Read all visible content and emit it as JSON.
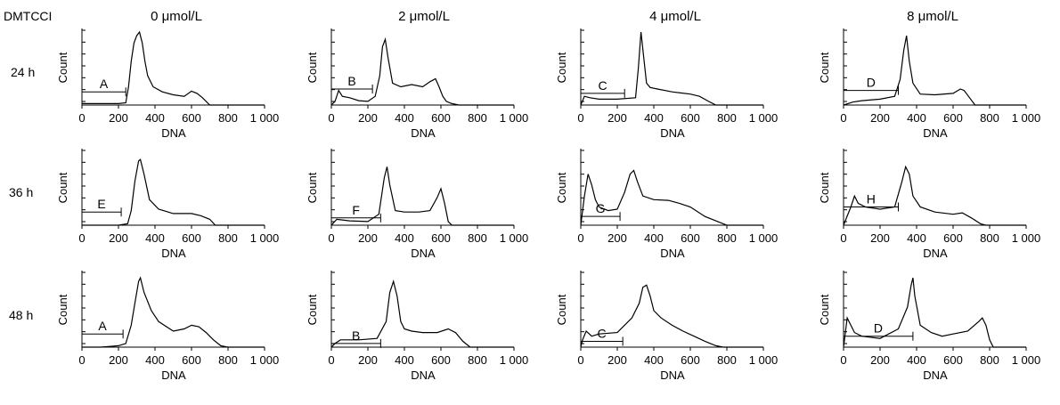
{
  "figure": {
    "corner_label": "DMTCCI",
    "columns": [
      "0 μmol/L",
      "2 μmol/L",
      "4 μmol/L",
      "8 μmol/L"
    ],
    "rows": [
      "24 h",
      "36 h",
      "48 h"
    ]
  },
  "chart_data": [
    {
      "type": "line",
      "row": 0,
      "col": 0,
      "xlabel": "DNA",
      "ylabel": "Count",
      "xlim": [
        0,
        1000
      ],
      "x_ticks": [
        "0",
        "200",
        "400",
        "600",
        "800",
        "1 000"
      ],
      "gate": {
        "label": "A",
        "x": [
          0,
          240
        ],
        "level": 0.18
      },
      "series": [
        {
          "x": [
            0,
            100,
            200,
            240,
            255,
            270,
            285,
            300,
            315,
            330,
            345,
            360,
            390,
            440,
            500,
            560,
            600,
            630,
            660,
            700,
            1000
          ],
          "values": [
            0.02,
            0.02,
            0.02,
            0.03,
            0.25,
            0.6,
            0.85,
            0.95,
            1.0,
            0.85,
            0.6,
            0.4,
            0.25,
            0.18,
            0.14,
            0.12,
            0.19,
            0.16,
            0.1,
            0.0,
            0.0
          ]
        }
      ]
    },
    {
      "type": "line",
      "row": 0,
      "col": 1,
      "xlabel": "DNA",
      "ylabel": "Count",
      "xlim": [
        0,
        1000
      ],
      "x_ticks": [
        "0",
        "200",
        "400",
        "600",
        "800",
        "1 000"
      ],
      "gate": {
        "label": "B",
        "x": [
          0,
          225
        ],
        "level": 0.22
      },
      "series": [
        {
          "x": [
            0,
            20,
            40,
            60,
            100,
            150,
            200,
            240,
            265,
            280,
            295,
            310,
            335,
            380,
            440,
            500,
            540,
            570,
            590,
            610,
            630,
            660,
            700,
            1000
          ],
          "values": [
            0.0,
            0.05,
            0.2,
            0.12,
            0.1,
            0.06,
            0.05,
            0.12,
            0.4,
            0.8,
            0.9,
            0.65,
            0.3,
            0.25,
            0.28,
            0.25,
            0.32,
            0.36,
            0.25,
            0.12,
            0.05,
            0.02,
            0.0,
            0.0
          ]
        }
      ]
    },
    {
      "type": "line",
      "row": 0,
      "col": 2,
      "xlabel": "DNA",
      "ylabel": "Count",
      "xlim": [
        0,
        1000
      ],
      "x_ticks": [
        "0",
        "200",
        "400",
        "600",
        "800",
        "1 000"
      ],
      "gate": {
        "label": "C",
        "x": [
          0,
          240
        ],
        "level": 0.16
      },
      "series": [
        {
          "x": [
            0,
            20,
            50,
            100,
            200,
            300,
            315,
            330,
            345,
            360,
            380,
            420,
            500,
            600,
            650,
            700,
            740,
            1000
          ],
          "values": [
            0.0,
            0.12,
            0.1,
            0.08,
            0.08,
            0.1,
            0.5,
            1.0,
            0.65,
            0.3,
            0.24,
            0.22,
            0.18,
            0.15,
            0.12,
            0.05,
            0.0,
            0.0
          ]
        }
      ]
    },
    {
      "type": "line",
      "row": 0,
      "col": 3,
      "xlabel": "DNA",
      "ylabel": "Count",
      "xlim": [
        0,
        1000
      ],
      "x_ticks": [
        "0",
        "200",
        "400",
        "600",
        "800",
        "1 000"
      ],
      "gate": {
        "label": "D",
        "x": [
          0,
          300
        ],
        "level": 0.2
      },
      "series": [
        {
          "x": [
            0,
            50,
            100,
            200,
            280,
            310,
            330,
            345,
            360,
            380,
            420,
            500,
            600,
            640,
            660,
            690,
            720,
            1000
          ],
          "values": [
            0.0,
            0.04,
            0.06,
            0.08,
            0.12,
            0.35,
            0.75,
            0.95,
            0.6,
            0.3,
            0.15,
            0.14,
            0.16,
            0.22,
            0.2,
            0.1,
            0.0,
            0.0
          ]
        }
      ]
    },
    {
      "type": "line",
      "row": 1,
      "col": 0,
      "xlabel": "DNA",
      "ylabel": "Count",
      "xlim": [
        0,
        1000
      ],
      "x_ticks": [
        "0",
        "200",
        "400",
        "600",
        "800",
        "1 000"
      ],
      "gate": {
        "label": "E",
        "x": [
          0,
          215
        ],
        "level": 0.18
      },
      "series": [
        {
          "x": [
            0,
            100,
            200,
            250,
            270,
            290,
            310,
            320,
            340,
            370,
            420,
            500,
            600,
            650,
            700,
            730,
            1000
          ],
          "values": [
            0.0,
            0.0,
            0.0,
            0.02,
            0.2,
            0.6,
            0.88,
            0.9,
            0.7,
            0.35,
            0.22,
            0.16,
            0.16,
            0.13,
            0.08,
            0.0,
            0.0
          ]
        }
      ]
    },
    {
      "type": "line",
      "row": 1,
      "col": 1,
      "xlabel": "DNA",
      "ylabel": "Count",
      "xlim": [
        0,
        1000
      ],
      "x_ticks": [
        "0",
        "200",
        "400",
        "600",
        "800",
        "1 000"
      ],
      "gate": {
        "label": "F",
        "x": [
          0,
          270
        ],
        "level": 0.1
      },
      "series": [
        {
          "x": [
            0,
            30,
            100,
            200,
            260,
            290,
            305,
            320,
            350,
            400,
            480,
            540,
            580,
            600,
            620,
            640,
            660,
            1000
          ],
          "values": [
            0.0,
            0.08,
            0.06,
            0.05,
            0.15,
            0.65,
            0.8,
            0.55,
            0.2,
            0.18,
            0.18,
            0.2,
            0.38,
            0.5,
            0.3,
            0.05,
            0.0,
            0.0
          ]
        }
      ]
    },
    {
      "type": "line",
      "row": 1,
      "col": 2,
      "xlabel": "DNA",
      "ylabel": "Count",
      "xlim": [
        0,
        1000
      ],
      "x_ticks": [
        "0",
        "200",
        "400",
        "600",
        "800",
        "1 000"
      ],
      "gate": {
        "label": "G",
        "x": [
          0,
          215
        ],
        "level": 0.12
      },
      "series": [
        {
          "x": [
            0,
            20,
            40,
            60,
            80,
            100,
            150,
            200,
            240,
            270,
            290,
            310,
            340,
            400,
            480,
            540,
            600,
            680,
            750,
            800,
            1000
          ],
          "values": [
            0.0,
            0.4,
            0.7,
            0.55,
            0.35,
            0.25,
            0.2,
            0.22,
            0.45,
            0.7,
            0.75,
            0.6,
            0.4,
            0.35,
            0.34,
            0.3,
            0.25,
            0.12,
            0.05,
            0.0,
            0.0
          ]
        }
      ]
    },
    {
      "type": "line",
      "row": 1,
      "col": 3,
      "xlabel": "DNA",
      "ylabel": "Count",
      "xlim": [
        0,
        1000
      ],
      "x_ticks": [
        "0",
        "200",
        "400",
        "600",
        "800",
        "1 000"
      ],
      "gate": {
        "label": "H",
        "x": [
          0,
          300
        ],
        "level": 0.25
      },
      "series": [
        {
          "x": [
            0,
            40,
            60,
            80,
            120,
            200,
            280,
            320,
            340,
            360,
            380,
            420,
            500,
            600,
            650,
            700,
            750,
            780,
            900,
            1000
          ],
          "values": [
            0.0,
            0.25,
            0.4,
            0.3,
            0.25,
            0.22,
            0.25,
            0.6,
            0.8,
            0.7,
            0.4,
            0.25,
            0.18,
            0.15,
            0.17,
            0.1,
            0.02,
            0.0,
            0.0,
            0.0
          ]
        }
      ]
    },
    {
      "type": "line",
      "row": 2,
      "col": 0,
      "xlabel": "DNA",
      "ylabel": "Count",
      "xlim": [
        0,
        1000
      ],
      "x_ticks": [
        "0",
        "200",
        "400",
        "600",
        "800",
        "1 000"
      ],
      "gate": {
        "label": "A",
        "x": [
          0,
          225
        ],
        "level": 0.18
      },
      "series": [
        {
          "x": [
            0,
            100,
            200,
            240,
            270,
            290,
            310,
            320,
            340,
            380,
            420,
            500,
            560,
            600,
            640,
            680,
            720,
            760,
            800,
            1000
          ],
          "values": [
            0.0,
            0.0,
            0.02,
            0.05,
            0.3,
            0.6,
            0.9,
            0.95,
            0.75,
            0.5,
            0.35,
            0.22,
            0.25,
            0.3,
            0.28,
            0.2,
            0.1,
            0.02,
            0.0,
            0.0
          ]
        }
      ]
    },
    {
      "type": "line",
      "row": 2,
      "col": 1,
      "xlabel": "DNA",
      "ylabel": "Count",
      "xlim": [
        0,
        1000
      ],
      "x_ticks": [
        "0",
        "200",
        "400",
        "600",
        "800",
        "1 000"
      ],
      "gate": {
        "label": "B",
        "x": [
          0,
          270
        ],
        "level": 0.05
      },
      "series": [
        {
          "x": [
            0,
            20,
            50,
            150,
            250,
            300,
            320,
            340,
            360,
            380,
            400,
            440,
            500,
            580,
            640,
            680,
            720,
            760,
            1000
          ],
          "values": [
            0.0,
            0.05,
            0.1,
            0.1,
            0.12,
            0.35,
            0.75,
            0.9,
            0.7,
            0.35,
            0.25,
            0.22,
            0.2,
            0.2,
            0.25,
            0.2,
            0.08,
            0.0,
            0.0
          ]
        }
      ]
    },
    {
      "type": "line",
      "row": 2,
      "col": 2,
      "xlabel": "DNA",
      "ylabel": "Count",
      "xlim": [
        0,
        1000
      ],
      "x_ticks": [
        "0",
        "200",
        "400",
        "600",
        "800",
        "1 000"
      ],
      "gate": {
        "label": "C",
        "x": [
          0,
          230
        ],
        "level": 0.08
      },
      "series": [
        {
          "x": [
            0,
            10,
            30,
            60,
            100,
            200,
            280,
            320,
            340,
            360,
            380,
            400,
            440,
            500,
            560,
            620,
            680,
            740,
            780,
            1000
          ],
          "values": [
            0.0,
            0.1,
            0.22,
            0.15,
            0.18,
            0.2,
            0.4,
            0.6,
            0.82,
            0.85,
            0.7,
            0.5,
            0.4,
            0.3,
            0.22,
            0.15,
            0.08,
            0.02,
            0.0,
            0.0
          ]
        }
      ]
    },
    {
      "type": "line",
      "row": 2,
      "col": 3,
      "xlabel": "DNA",
      "ylabel": "Count",
      "xlim": [
        0,
        1000
      ],
      "x_ticks": [
        "0",
        "200",
        "400",
        "600",
        "800",
        "1 000"
      ],
      "gate": {
        "label": "D",
        "x": [
          0,
          380
        ],
        "level": 0.15
      },
      "series": [
        {
          "x": [
            0,
            20,
            40,
            60,
            100,
            200,
            300,
            350,
            370,
            380,
            390,
            420,
            480,
            540,
            600,
            680,
            740,
            760,
            780,
            800,
            820,
            1000
          ],
          "values": [
            0.0,
            0.4,
            0.3,
            0.2,
            0.15,
            0.12,
            0.25,
            0.55,
            0.85,
            0.95,
            0.7,
            0.3,
            0.2,
            0.15,
            0.18,
            0.22,
            0.35,
            0.4,
            0.3,
            0.1,
            0.0,
            0.0
          ]
        }
      ]
    }
  ]
}
